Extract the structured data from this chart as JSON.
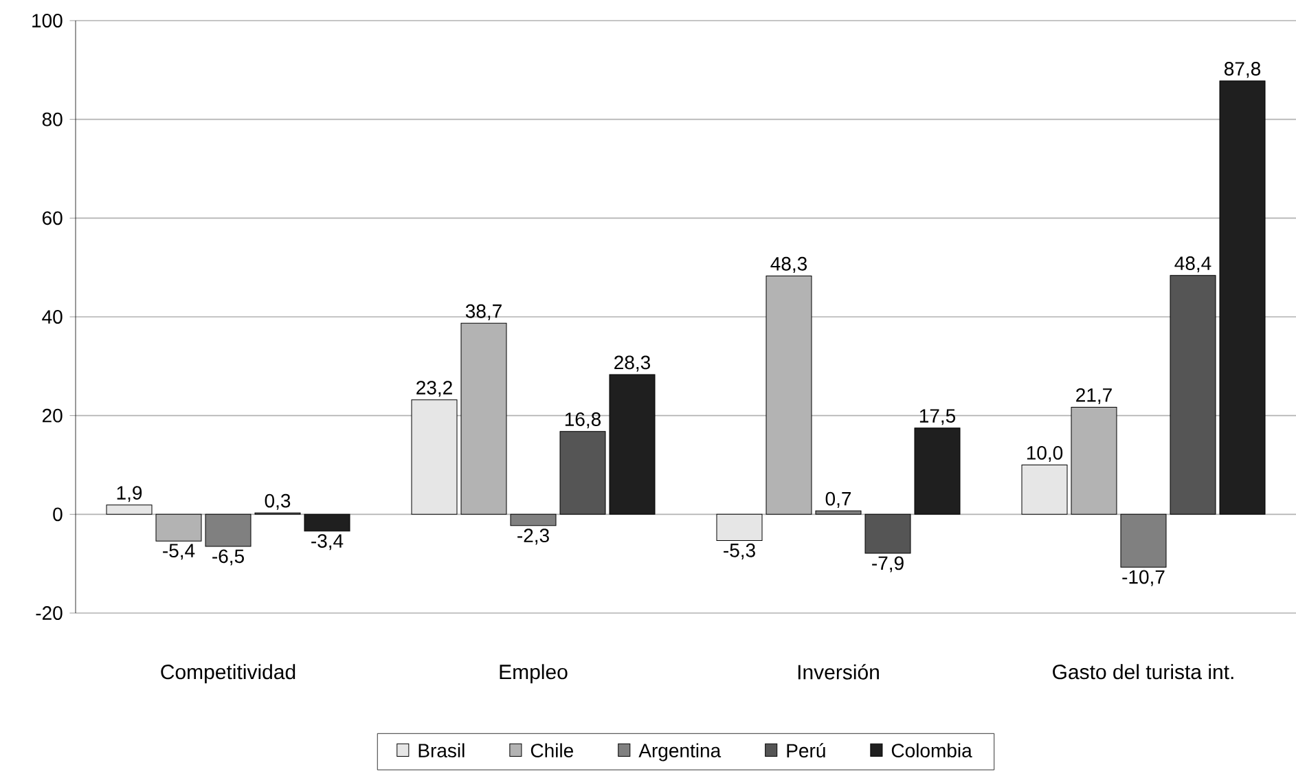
{
  "chart_data": {
    "type": "bar",
    "categories": [
      "Competitividad",
      "Empleo",
      "Inversión",
      "Gasto del turista int."
    ],
    "series": [
      {
        "name": "Brasil",
        "color": "#e6e6e6",
        "values": [
          1.9,
          23.2,
          -5.3,
          10.0
        ],
        "value_labels": [
          "1,9",
          "23,2",
          "-5,3",
          "10,0"
        ]
      },
      {
        "name": "Chile",
        "color": "#b3b3b3",
        "values": [
          -5.4,
          38.7,
          48.3,
          21.7
        ],
        "value_labels": [
          "-5,4",
          "38,7",
          "48,3",
          "21,7"
        ]
      },
      {
        "name": "Argentina",
        "color": "#808080",
        "values": [
          -6.5,
          -2.3,
          0.7,
          -10.7
        ],
        "value_labels": [
          "-6,5",
          "-2,3",
          "0,7",
          "-10,7"
        ]
      },
      {
        "name": "Perú",
        "color": "#555555",
        "values": [
          0.3,
          16.8,
          -7.9,
          48.4
        ],
        "value_labels": [
          "0,3",
          "16,8",
          "-7,9",
          "48,4"
        ]
      },
      {
        "name": "Colombia",
        "color": "#1f1f1f",
        "values": [
          -3.4,
          28.3,
          17.5,
          87.8
        ],
        "value_labels": [
          "-3,4",
          "28,3",
          "17,5",
          "87,8"
        ]
      }
    ],
    "ylim": [
      -20,
      100
    ],
    "yticks": [
      -20,
      0,
      20,
      40,
      60,
      80,
      100
    ],
    "grid": "y",
    "legend": "bottom"
  }
}
